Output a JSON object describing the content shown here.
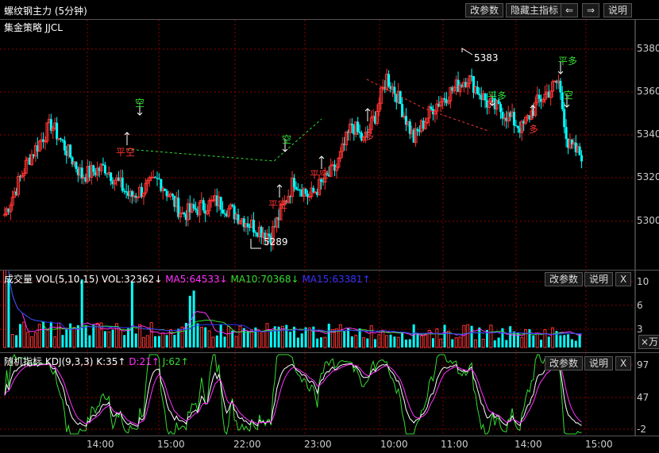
{
  "header": {
    "title": "螺纹钢主力 (5分钟)",
    "strategy": "集金策略 JJCL",
    "buttons": {
      "params": "改参数",
      "hide_indicator": "隐藏主指标",
      "left": "⇐",
      "right": "⇒",
      "help": "说明"
    }
  },
  "main_chart": {
    "y_ticks": [
      "5380",
      "5360",
      "5340",
      "5320",
      "5300"
    ],
    "annotations": {
      "high": "5383",
      "low": "5289",
      "signals": [
        {
          "text": "空",
          "color": "#33dd33"
        },
        {
          "text": "平空",
          "color": "#ff3333"
        },
        {
          "text": "空",
          "color": "#33dd33"
        },
        {
          "text": "平空",
          "color": "#ff3333"
        },
        {
          "text": "平空",
          "color": "#ff3333"
        },
        {
          "text": "多",
          "color": "#ff3333"
        },
        {
          "text": "平多",
          "color": "#33dd33"
        },
        {
          "text": "多",
          "color": "#ff3333"
        },
        {
          "text": "平多",
          "color": "#33dd33"
        },
        {
          "text": "空",
          "color": "#33dd33"
        }
      ]
    }
  },
  "volume": {
    "name": "成交量",
    "params": "VOL(5,10,15)",
    "vol": "VOL:32362↓",
    "ma5": "MA5:64533↓",
    "ma10": "MA10:70368↓",
    "ma15": "MA15:63381↑",
    "y_ticks": [
      "10",
      "6",
      "3"
    ],
    "unit_label": "×万",
    "buttons": {
      "params": "改参数",
      "help": "说明",
      "close": "X"
    },
    "colors": {
      "ma5": "#ff33ff",
      "ma10": "#33dd33",
      "ma15": "#3333ff"
    }
  },
  "kdj": {
    "name": "随机指标",
    "params": "KDJ(9,3,3)",
    "k": "K:35↑",
    "d": "D:21↑",
    "j": "J:62↑",
    "y_ticks": [
      "97",
      "47",
      "-2"
    ],
    "buttons": {
      "params": "改参数",
      "help": "说明",
      "close": "X"
    }
  },
  "x_axis": {
    "labels": [
      "14:00",
      "15:00",
      "22:00",
      "23:00",
      "10:00",
      "11:00",
      "14:00",
      "15:00"
    ]
  },
  "colors": {
    "up": "#ff3333",
    "down": "#00ffff",
    "grid": "#8b0000",
    "signal_green": "#33dd33",
    "signal_red": "#ff3333"
  }
}
